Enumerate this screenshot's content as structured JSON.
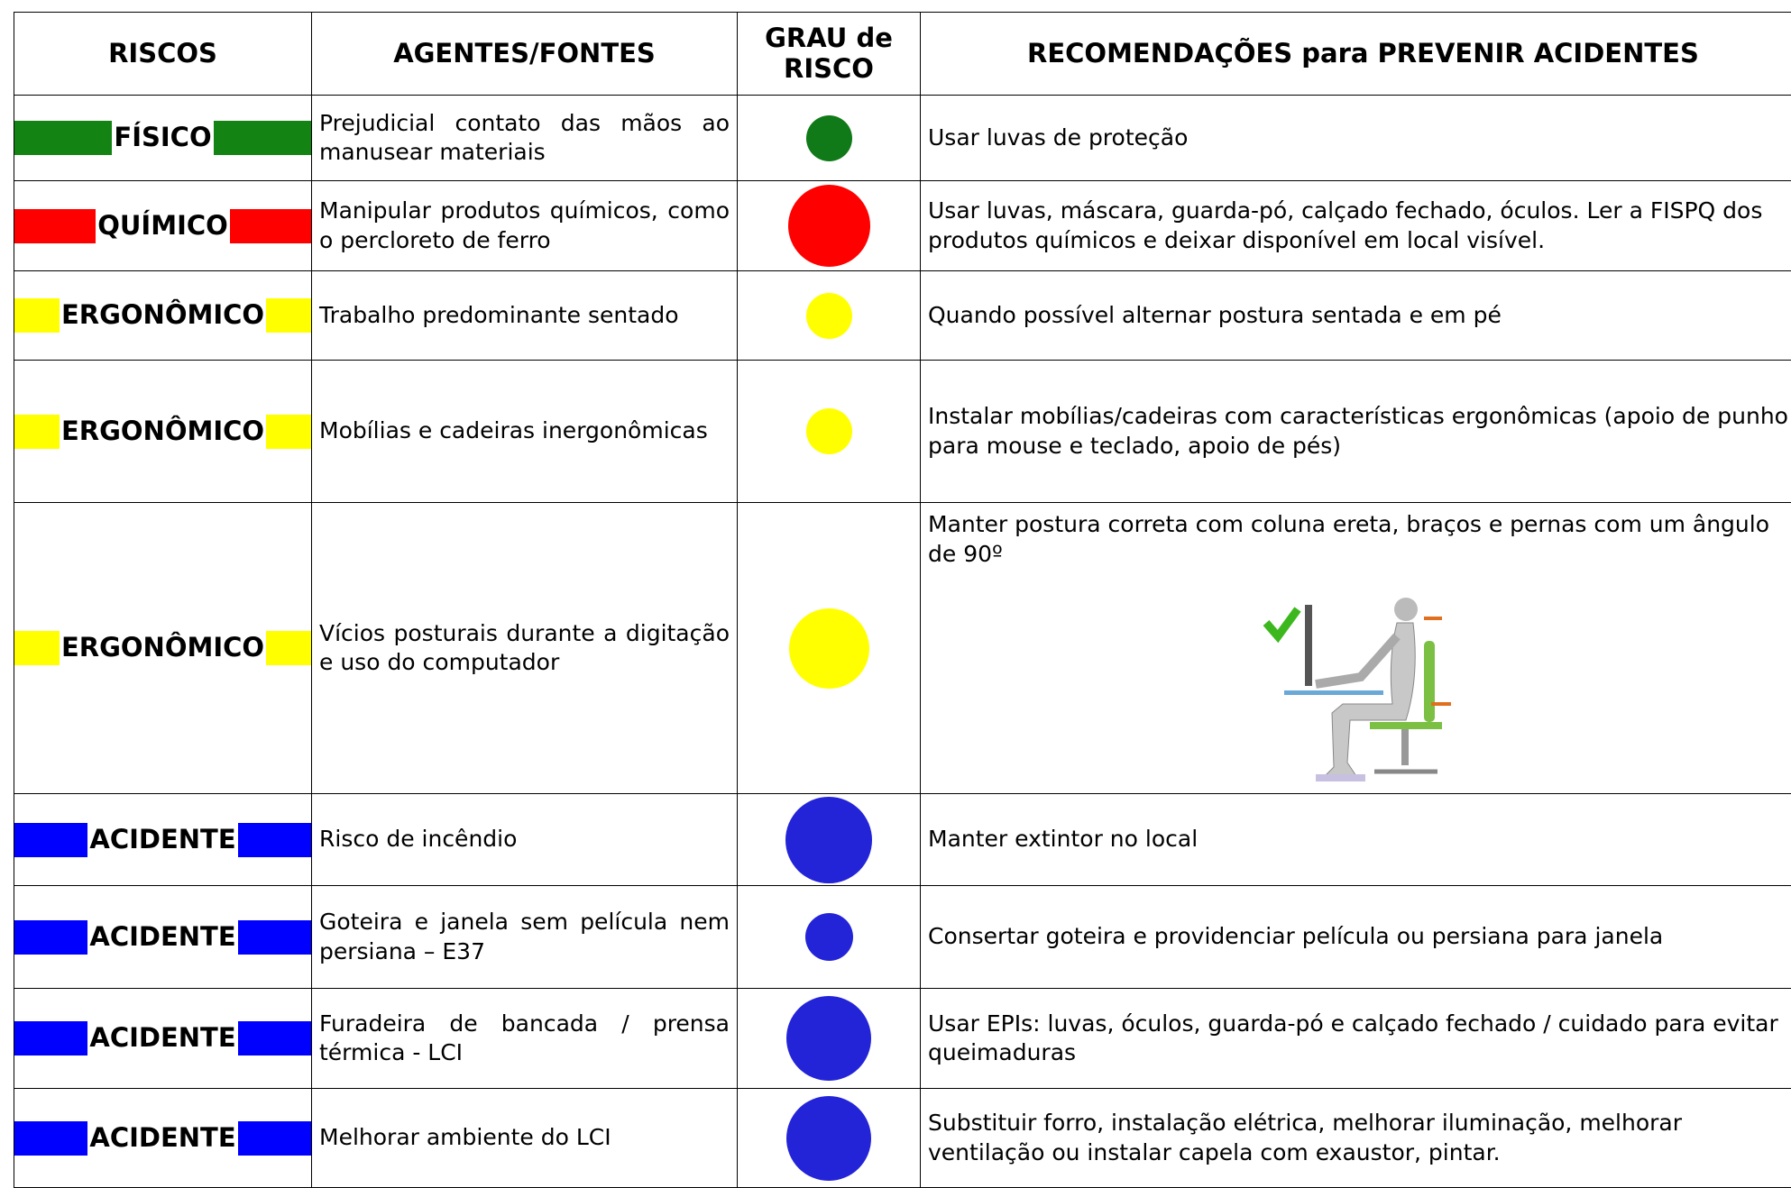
{
  "header": [
    "RISCOS",
    "AGENTES/FONTES",
    "GRAU de RISCO",
    "RECOMENDAÇÕES para PREVENIR ACIDENTES"
  ],
  "rows": [
    {
      "risco": "FÍSICO",
      "risco_color": "#138413",
      "agente": "Prejudicial contato das mãos ao manusear materiais",
      "grau_color": "#0f7a17",
      "recomendacao": "Usar luvas de proteção"
    },
    {
      "risco": "QUÍMICO",
      "risco_color": "#ff0000",
      "agente": "Manipular produtos químicos, como o percloreto de ferro",
      "grau_color": "#ff0000",
      "recomendacao": "Usar luvas, máscara, guarda-pó, calçado fechado, óculos. Ler a FISPQ dos produtos químicos e deixar disponível em local visível."
    },
    {
      "risco": "ERGONÔMICO",
      "risco_color": "#ffff00",
      "agente": "Trabalho predominante sentado",
      "grau_color": "#ffff00",
      "recomendacao": "Quando possível alternar postura sentada e em pé"
    },
    {
      "risco": "ERGONÔMICO",
      "risco_color": "#ffff00",
      "agente": "Mobílias e cadeiras inergonômicas",
      "grau_color": "#ffff00",
      "recomendacao": "Instalar mobílias/cadeiras com características ergonômicas (apoio de punho para mouse e teclado, apoio de pés)"
    },
    {
      "risco": "ERGONÔMICO",
      "risco_color": "#ffff00",
      "agente": "Vícios posturais durante a digitação e uso do computador",
      "grau_color": "#ffff00",
      "recomendacao": "Manter postura correta com coluna ereta, braços e pernas com um ângulo de 90º"
    },
    {
      "risco": "ACIDENTE",
      "risco_color": "#0000ff",
      "agente": "Risco de incêndio",
      "grau_color": "#2323d8",
      "recomendacao": "Manter extintor no local"
    },
    {
      "risco": "ACIDENTE",
      "risco_color": "#0000ff",
      "agente": "Goteira e janela sem película nem persiana – E37",
      "grau_color": "#2323d8",
      "recomendacao": "Consertar goteira e providenciar película ou persiana para janela"
    },
    {
      "risco": "ACIDENTE",
      "risco_color": "#0000ff",
      "agente": "Furadeira de bancada / prensa térmica - LCI",
      "grau_color": "#2323d8",
      "recomendacao": "Usar EPIs: luvas, óculos, guarda-pó e calçado fechado / cuidado para evitar queimaduras"
    },
    {
      "risco": "ACIDENTE",
      "risco_color": "#0000ff",
      "agente": "Melhorar ambiente do LCI",
      "grau_color": "#2323d8",
      "recomendacao": "Substituir forro, instalação elétrica, melhorar iluminação, melhorar ventilação ou instalar capela com exaustor, pintar."
    }
  ]
}
